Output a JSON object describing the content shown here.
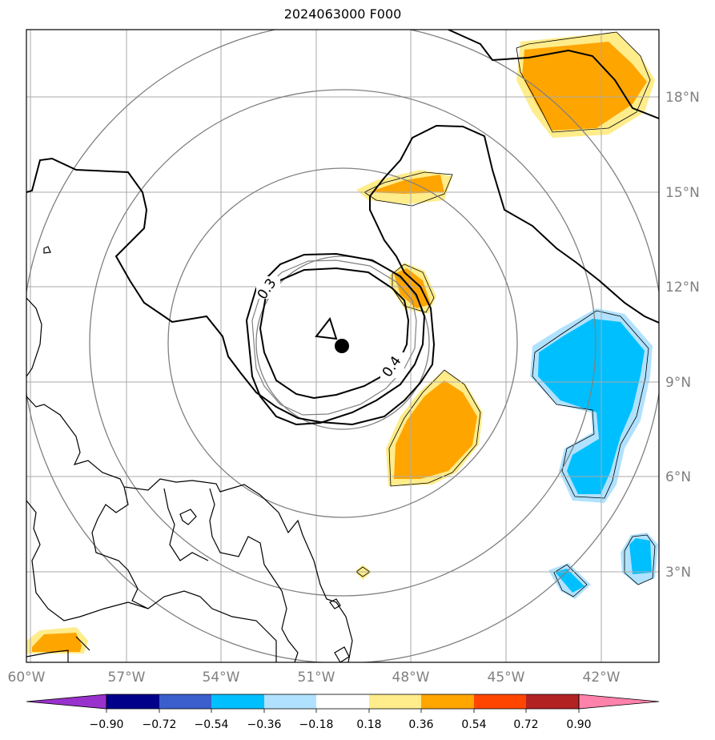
{
  "title": "2024063000 F000",
  "axes": {
    "lon_ticks": [
      "60°W",
      "57°W",
      "54°W",
      "51°W",
      "48°W",
      "45°W",
      "42°W"
    ],
    "lat_ticks": [
      "3°N",
      "6°N",
      "9°N",
      "12°N",
      "15°N",
      "18°N"
    ]
  },
  "contour_labels": [
    "0.3",
    "0.4"
  ],
  "colorbar": {
    "tick_labels": [
      "−0.90",
      "−0.72",
      "−0.54",
      "−0.36",
      "−0.18",
      "0.18",
      "0.36",
      "0.54",
      "0.72",
      "0.90"
    ],
    "colors": [
      "#9932cc",
      "#00008b",
      "#3a5fcd",
      "#00bfff",
      "#b0e2ff",
      "#ffffff",
      "#ffec8b",
      "#ffa500",
      "#ff4500",
      "#b22222",
      "#ff82ab"
    ]
  },
  "colors": {
    "positive_light": "#ffec8b",
    "positive_mid": "#ffa500",
    "negative_light": "#b0e2ff",
    "negative_mid": "#00bfff",
    "grid": "#aaaaaa",
    "tick_label": "#808080"
  }
}
